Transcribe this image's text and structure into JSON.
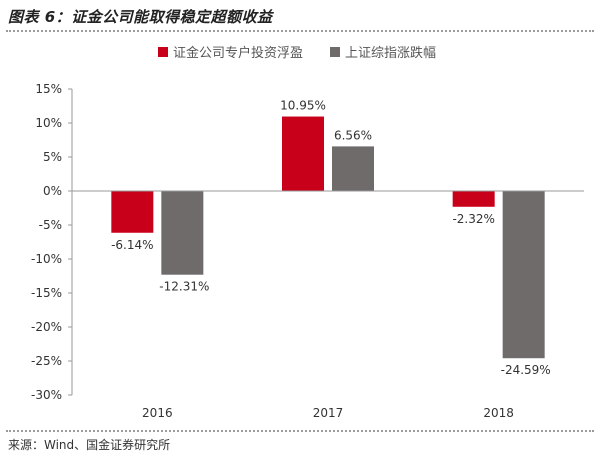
{
  "header": {
    "title": "图表 6：证金公司能取得稳定超额收益"
  },
  "footer": {
    "source": "来源：Wind、国金证券研究所"
  },
  "colors": {
    "series1": "#c8001a",
    "series2": "#6f6b6b",
    "axis": "#999999"
  },
  "chart_data": {
    "type": "bar",
    "categories": [
      "2016",
      "2017",
      "2018"
    ],
    "series": [
      {
        "name": "证金公司专户投资浮盈",
        "values": [
          -6.14,
          10.95,
          -2.32
        ],
        "labels": [
          "-6.14%",
          "10.95%",
          "-2.32%"
        ]
      },
      {
        "name": "上证综指涨跌幅",
        "values": [
          -12.31,
          6.56,
          -24.59
        ],
        "labels": [
          "-12.31%",
          "6.56%",
          "-24.59%"
        ]
      }
    ],
    "ylim": [
      -30,
      15
    ],
    "yticks": [
      15,
      10,
      5,
      0,
      -5,
      -10,
      -15,
      -20,
      -25,
      -30
    ],
    "ytick_labels": [
      "15%",
      "10%",
      "5%",
      "0%",
      "-5%",
      "-10%",
      "-15%",
      "-20%",
      "-25%",
      "-30%"
    ],
    "legend_position": "top-center",
    "grid": false
  }
}
